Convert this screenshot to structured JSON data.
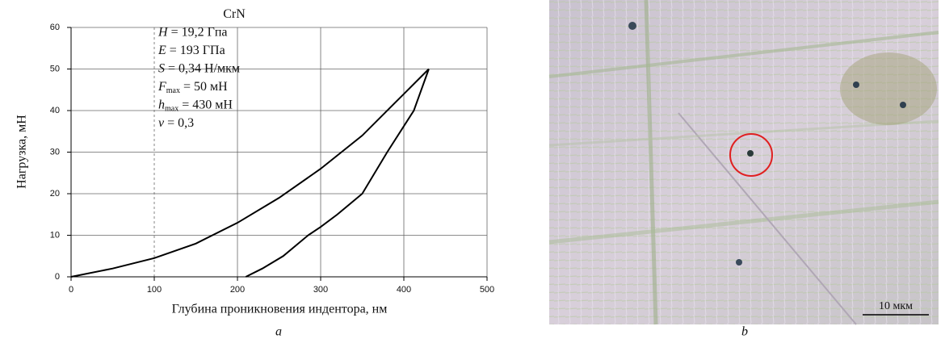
{
  "chart_data": {
    "type": "line",
    "xlabel": "Глубина проникновения индентора, нм",
    "ylabel": "Нагрузка, мН",
    "panel_label": "a",
    "xlim": [
      0,
      500
    ],
    "xticks": [
      0,
      100,
      200,
      300,
      400,
      500
    ],
    "ylim": [
      0,
      60
    ],
    "yticks": [
      0,
      10,
      20,
      30,
      40,
      50,
      60
    ],
    "grid": true,
    "annotations": [
      {
        "text": "CrN"
      },
      {
        "symbol": "H",
        "text": " = 19,2 Гпа"
      },
      {
        "symbol": "E",
        "text": " = 193 ГПа"
      },
      {
        "symbol": "S",
        "text": " = 0,34 Н/мкм"
      },
      {
        "symbol": "F",
        "sub": "max",
        "text": " = 50 мН"
      },
      {
        "symbol": "h",
        "sub": "max",
        "text": " = 430 мН"
      },
      {
        "symbol": "v",
        "text": " = 0,3"
      }
    ],
    "series": [
      {
        "color": "#000000",
        "x": [
          0,
          50,
          100,
          150,
          200,
          250,
          300,
          350,
          400,
          430
        ],
        "values": [
          0,
          2,
          4.5,
          8,
          13,
          19,
          26,
          34,
          44,
          50
        ]
      },
      {
        "color": "#000000",
        "x": [
          430,
          412,
          380,
          350,
          320,
          300,
          285,
          255,
          230,
          210
        ],
        "values": [
          50,
          40,
          30,
          20,
          15,
          12,
          10,
          5,
          2,
          0
        ]
      }
    ]
  },
  "image": {
    "panel_label": "b",
    "scale_label": "10 мкм"
  }
}
